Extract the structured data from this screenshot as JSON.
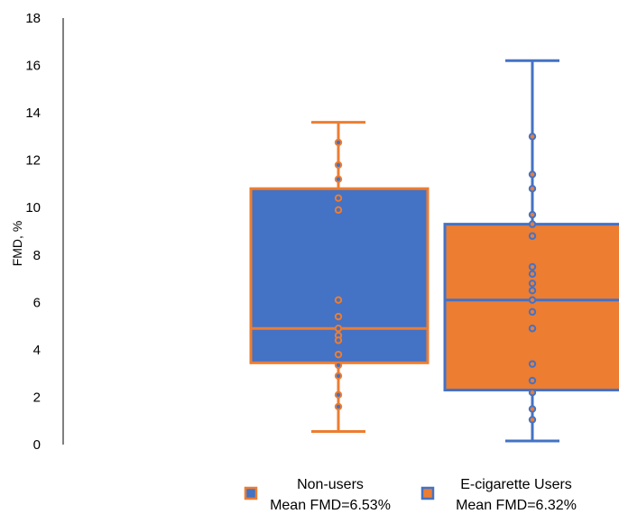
{
  "chart_data": {
    "type": "box",
    "ylabel": "FMD, %",
    "ylim": [
      0,
      18
    ],
    "yticks": [
      "0",
      "2",
      "4",
      "6",
      "8",
      "10",
      "12",
      "14",
      "16",
      "18"
    ],
    "grid": false,
    "legend_position": "bottom",
    "series": [
      {
        "name": "Non-users",
        "legend_line2": "Mean FMD=6.53%",
        "fill_color": "#4472C4",
        "edge_color": "#ED7D31",
        "min": 0.55,
        "q1": 3.45,
        "median": 4.9,
        "q3": 10.8,
        "max": 13.6,
        "points": [
          12.75,
          11.8,
          11.2,
          10.4,
          9.9,
          6.1,
          5.4,
          4.9,
          4.6,
          4.4,
          3.8,
          3.35,
          2.9,
          2.1,
          1.6
        ]
      },
      {
        "name": "E-cigarette Users",
        "legend_line2": "Mean FMD=6.32%",
        "fill_color": "#ED7D31",
        "edge_color": "#4472C4",
        "min": 0.15,
        "q1": 2.3,
        "median": 6.1,
        "q3": 9.3,
        "max": 16.2,
        "points": [
          13.0,
          11.4,
          10.8,
          9.7,
          9.3,
          8.8,
          7.5,
          7.2,
          6.8,
          6.5,
          6.1,
          5.6,
          4.9,
          3.4,
          2.7,
          2.2,
          1.5,
          1.05
        ]
      }
    ]
  }
}
